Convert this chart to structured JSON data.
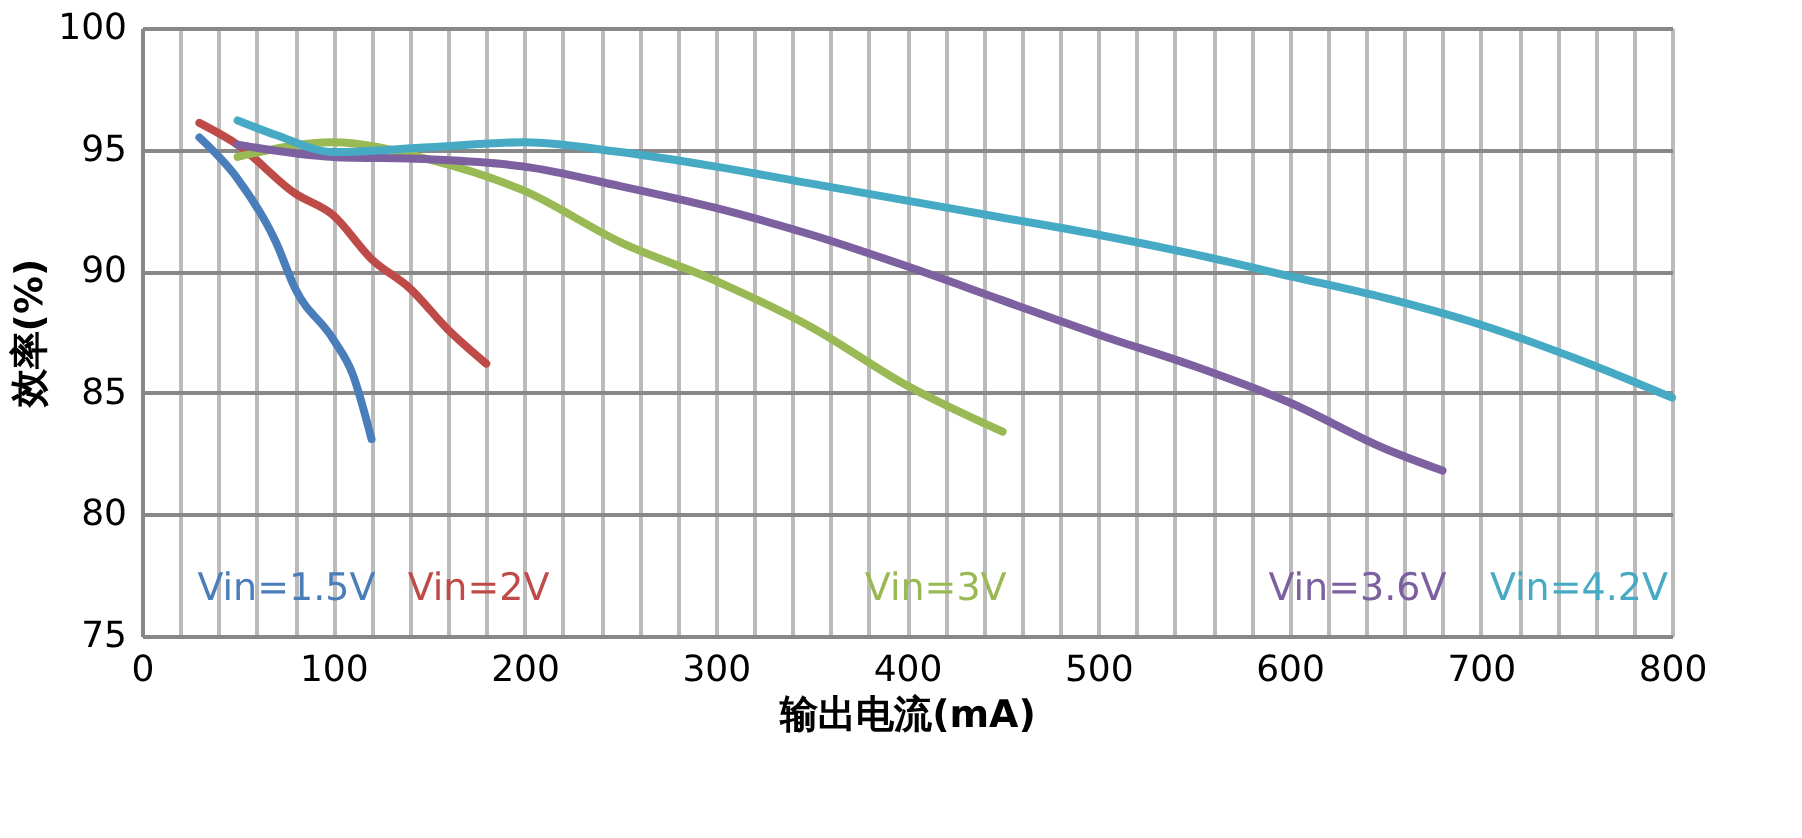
{
  "chart_data": {
    "type": "line",
    "xlabel": "输出电流(mA)",
    "ylabel": "效率(%)",
    "xlim": [
      0,
      800
    ],
    "ylim": [
      75,
      100
    ],
    "xticks": [
      0,
      {
        "value": 20,
        "label": null
      },
      {
        "value": 40,
        "label": null
      },
      {
        "value": 60,
        "label": null
      },
      {
        "value": 80,
        "label": null
      },
      100,
      {
        "value": 120,
        "label": null
      },
      {
        "value": 140,
        "label": null
      },
      {
        "value": 160,
        "label": null
      },
      {
        "value": 180,
        "label": null
      },
      200,
      {
        "value": 220,
        "label": null
      },
      {
        "value": 240,
        "label": null
      },
      {
        "value": 260,
        "label": null
      },
      {
        "value": 280,
        "label": null
      },
      300,
      {
        "value": 320,
        "label": null
      },
      {
        "value": 340,
        "label": null
      },
      {
        "value": 360,
        "label": null
      },
      {
        "value": 380,
        "label": null
      },
      400,
      {
        "value": 420,
        "label": null
      },
      {
        "value": 440,
        "label": null
      },
      {
        "value": 460,
        "label": null
      },
      {
        "value": 480,
        "label": null
      },
      500,
      {
        "value": 520,
        "label": null
      },
      {
        "value": 540,
        "label": null
      },
      {
        "value": 560,
        "label": null
      },
      {
        "value": 580,
        "label": null
      },
      600,
      {
        "value": 620,
        "label": null
      },
      {
        "value": 640,
        "label": null
      },
      {
        "value": 660,
        "label": null
      },
      {
        "value": 680,
        "label": null
      },
      700,
      {
        "value": 720,
        "label": null
      },
      {
        "value": 740,
        "label": null
      },
      {
        "value": 760,
        "label": null
      },
      {
        "value": 780,
        "label": null
      },
      800
    ],
    "yticks": [
      75,
      80,
      85,
      90,
      95,
      100
    ],
    "grid": true,
    "legend": false,
    "marker": "none",
    "line_style": "solid",
    "series": [
      {
        "name": "Vin=1.5V",
        "color": "#4a7ebb",
        "x": [
          30,
          50,
          70,
          80,
          100,
          110,
          120
        ],
        "values": [
          95.5,
          93.8,
          91.2,
          89.3,
          87.2,
          85.8,
          83.1
        ]
      },
      {
        "name": "Vin=2V",
        "color": "#be4b48",
        "x": [
          30,
          50,
          80,
          100,
          120,
          140,
          160,
          180
        ],
        "values": [
          96.1,
          95.2,
          93.2,
          92.3,
          90.5,
          89.3,
          87.6,
          86.2
        ]
      },
      {
        "name": "Vin=3V",
        "color": "#98b954",
        "x": [
          50,
          100,
          150,
          200,
          250,
          300,
          350,
          400,
          450
        ],
        "values": [
          94.7,
          95.3,
          94.6,
          93.3,
          91.2,
          89.6,
          87.7,
          85.3,
          83.4
        ]
      },
      {
        "name": "Vin=3.6V",
        "color": "#7d60a0",
        "x": [
          50,
          100,
          150,
          200,
          250,
          300,
          350,
          400,
          450,
          500,
          550,
          600,
          650,
          680
        ],
        "values": [
          95.2,
          94.7,
          94.6,
          94.3,
          93.5,
          92.6,
          91.5,
          90.2,
          88.8,
          87.4,
          86.1,
          84.6,
          82.7,
          81.8
        ]
      },
      {
        "name": "Vin=4.2V",
        "color": "#46aac5",
        "x": [
          50,
          70,
          100,
          150,
          200,
          250,
          300,
          350,
          400,
          450,
          500,
          550,
          600,
          650,
          700,
          750,
          800
        ],
        "values": [
          96.2,
          95.6,
          94.9,
          95.1,
          95.3,
          94.9,
          94.3,
          93.6,
          92.9,
          92.2,
          91.5,
          90.7,
          89.8,
          88.9,
          87.8,
          86.4,
          84.8
        ]
      }
    ]
  }
}
